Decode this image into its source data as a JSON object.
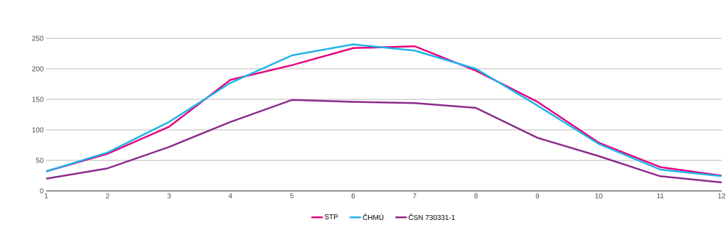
{
  "chart_data": {
    "type": "line",
    "x": [
      1,
      2,
      3,
      4,
      5,
      6,
      7,
      8,
      9,
      10,
      11,
      12
    ],
    "series": [
      {
        "name": "STP",
        "color": "#e6007e",
        "values": [
          32,
          61,
          105,
          182,
          206,
          234,
          237,
          197,
          146,
          79,
          39,
          25
        ]
      },
      {
        "name": "ČHMÚ",
        "color": "#1eb4e8",
        "values": [
          32,
          63,
          113,
          177,
          222,
          240,
          230,
          200,
          140,
          77,
          35,
          24
        ]
      },
      {
        "name": "ČSN 730331-1",
        "color": "#8b2a8c",
        "values": [
          20,
          37,
          72,
          113,
          149,
          146,
          144,
          136,
          87,
          57,
          24,
          14
        ]
      }
    ],
    "xlim": [
      1,
      12
    ],
    "xticks": [
      1,
      2,
      3,
      4,
      5,
      6,
      7,
      8,
      9,
      10,
      11,
      12
    ],
    "ylim": [
      0,
      250
    ],
    "yticks": [
      0,
      50,
      100,
      150,
      200,
      250
    ],
    "grid": "y",
    "legend": "bottom",
    "marker": "none",
    "line_style": "solid"
  }
}
